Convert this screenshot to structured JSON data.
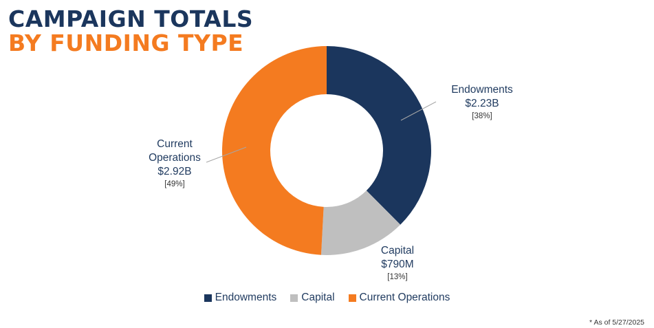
{
  "title": {
    "line1": "CAMPAIGN TOTALS",
    "line2": "BY FUNDING TYPE"
  },
  "colors": {
    "title_primary": "#1b365d",
    "title_accent": "#f47b20"
  },
  "chart_data": {
    "type": "pie",
    "style": "donut",
    "categories": [
      "Endowments",
      "Capital",
      "Current Operations"
    ],
    "values": [
      2.23,
      0.79,
      2.92
    ],
    "value_unit": "B",
    "display_values": [
      "$2.23B",
      "$790M",
      "$2.92B"
    ],
    "percent_labels": [
      "[38%]",
      "[13%]",
      "[49%]"
    ],
    "label_lines": [
      [
        "Endowments"
      ],
      [
        "Capital"
      ],
      [
        "Current",
        "Operations"
      ]
    ],
    "colors": [
      "#1b365d",
      "#bfbfbf",
      "#f47b20"
    ],
    "start_angle_deg": 0,
    "direction": "clockwise",
    "legend_position": "bottom",
    "legend": [
      "Endowments",
      "Capital",
      "Current Operations"
    ]
  },
  "footnote": "* As of 5/27/2025"
}
